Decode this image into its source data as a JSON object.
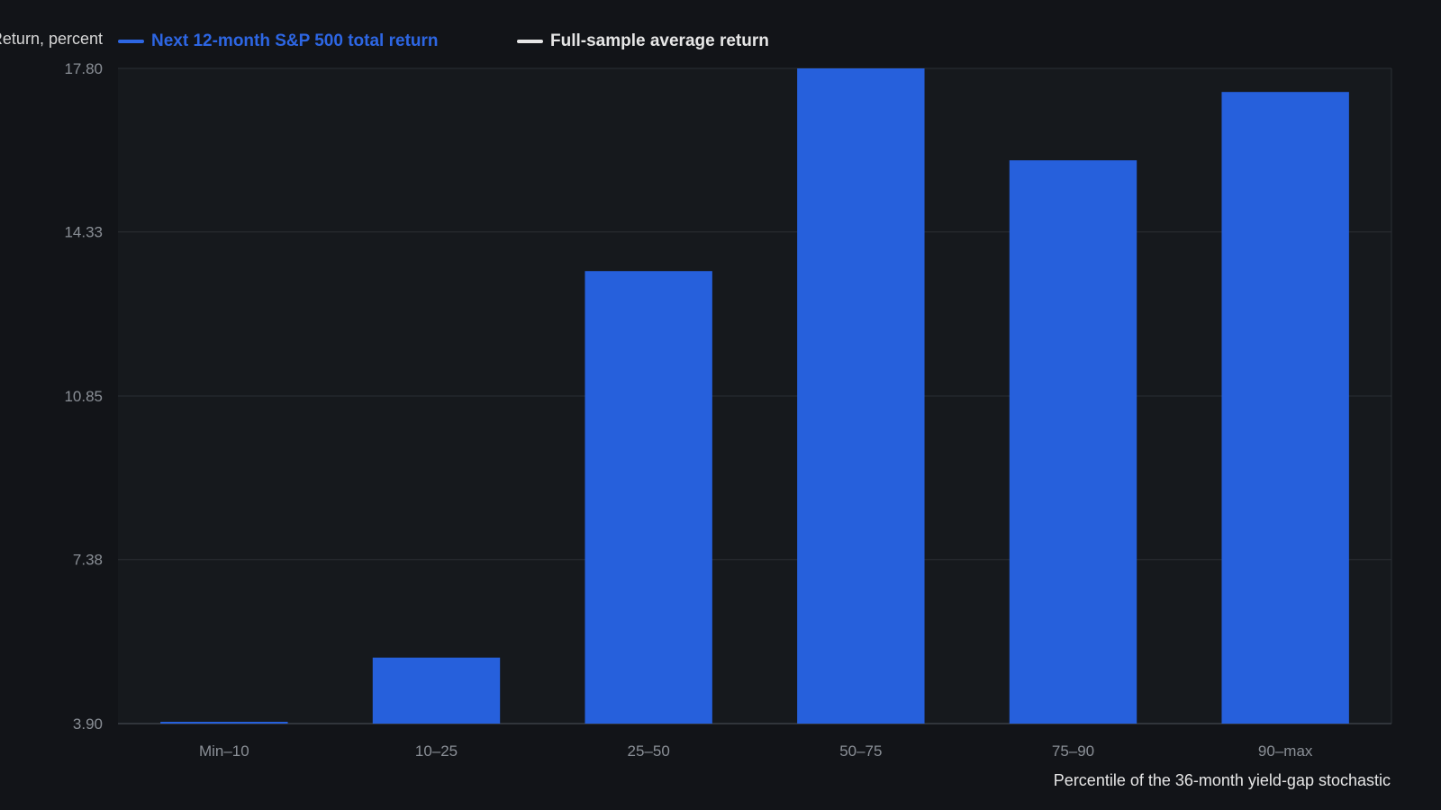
{
  "colors": {
    "background": "#121418",
    "plot_background": "#16191d",
    "bar": "#2660dc",
    "legend_series": "#2d66e3",
    "legend_average": "#e6e6e6",
    "grid": "#2b2f35",
    "tick_text": "#8a8f96"
  },
  "chart_data": {
    "type": "bar",
    "ylabel": "Return, percent",
    "xlabel": "Percentile of the 36-month yield-gap stochastic",
    "categories": [
      "Min–10",
      "10–25",
      "25–50",
      "50–75",
      "75–90",
      "90–max"
    ],
    "series": [
      {
        "name": "Next 12-month S&P 500 total return",
        "values": [
          3.88,
          5.3,
          13.5,
          17.8,
          15.85,
          17.3
        ]
      }
    ],
    "reference_lines": [
      {
        "name": "Full-sample average return"
      }
    ],
    "ylim": [
      3.9,
      17.8
    ],
    "yticks": [
      "17.80",
      "14.33",
      "10.85",
      "7.38",
      "3.90"
    ],
    "ytick_values": [
      17.8,
      14.33,
      10.85,
      7.38,
      3.9
    ],
    "grid": true,
    "legend_position": "top-left"
  }
}
